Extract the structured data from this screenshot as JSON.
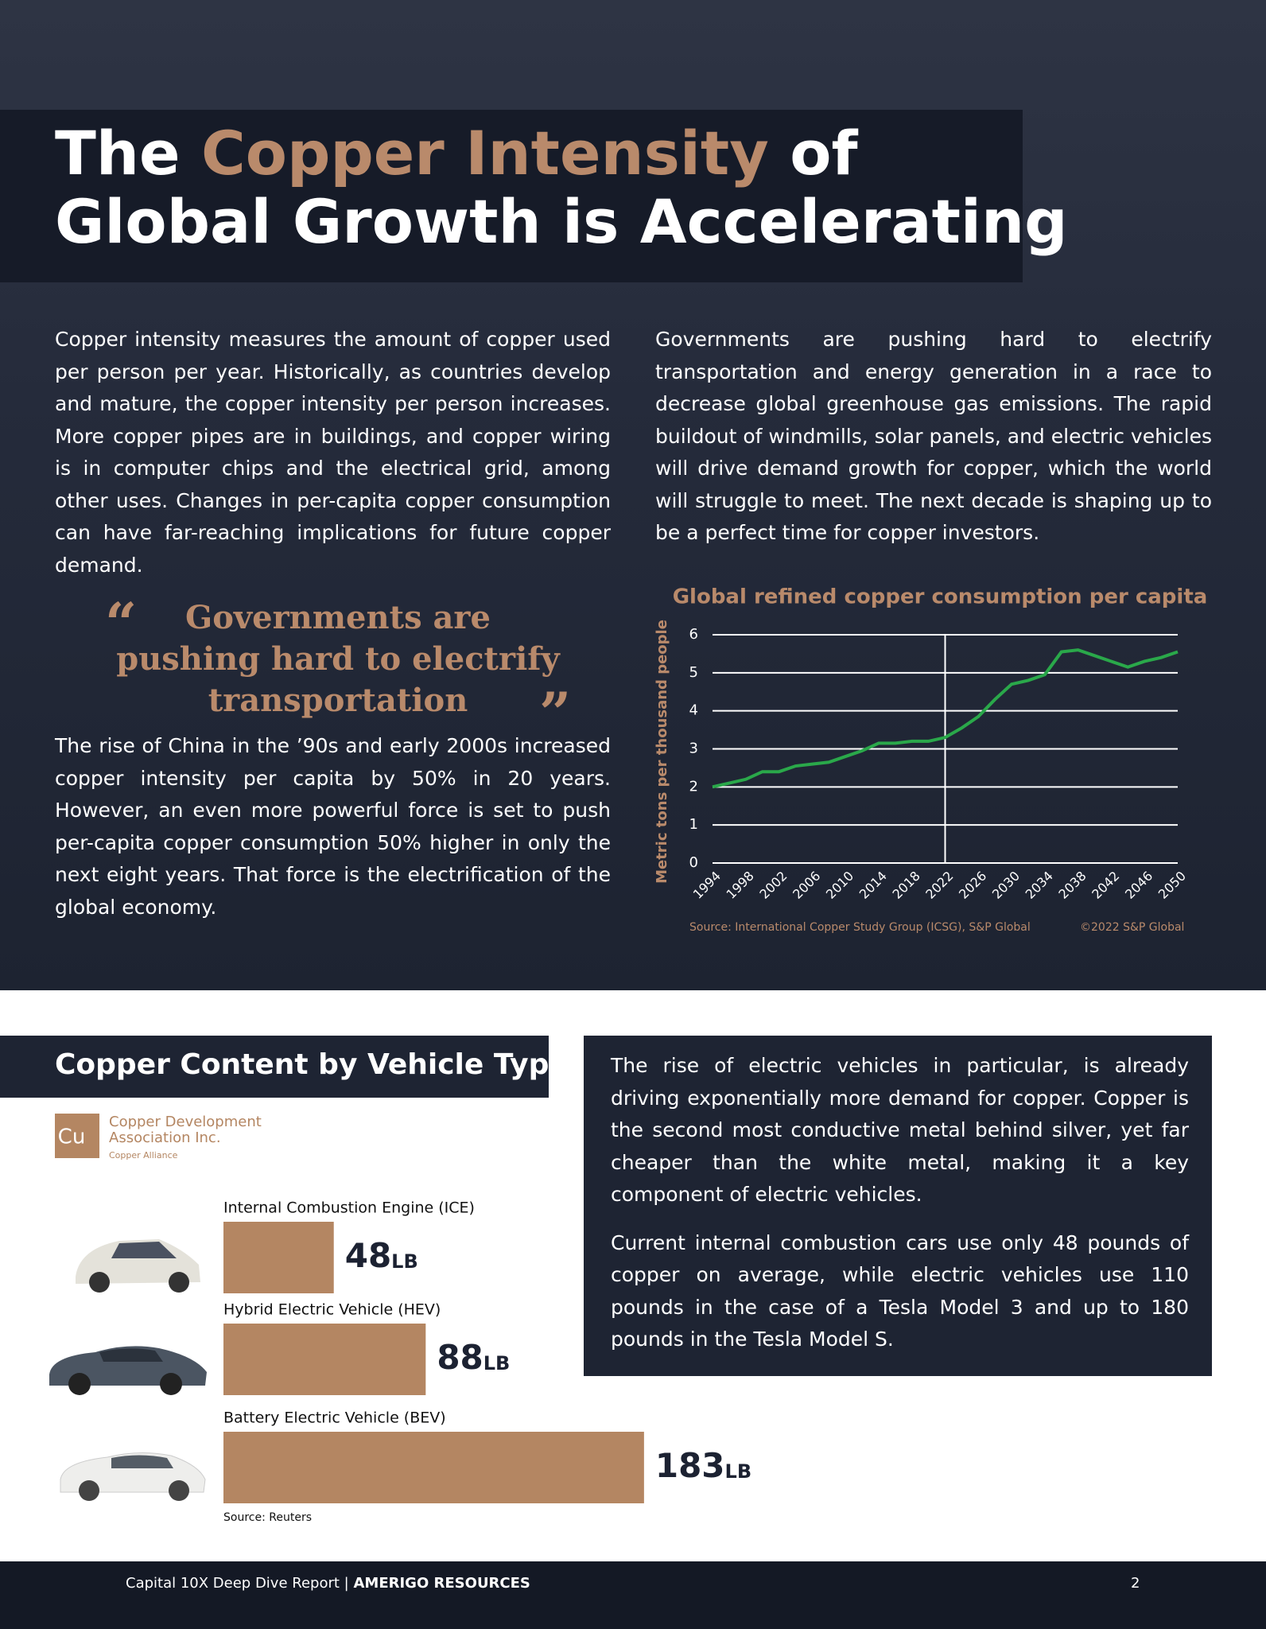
{
  "header": {
    "title_parts": [
      "The",
      "Copper Intensity",
      "of",
      "Global Growth is Accelerating"
    ]
  },
  "intro": {
    "left": "Copper intensity measures the amount of copper used per person per year. Historically, as countries develop and mature, the copper intensity per person increases. More copper pipes are in buildings, and copper wiring is in computer chips and the electrical grid, among other uses. Changes in per-capita copper consumption can have far-reaching implications for future copper demand.",
    "right": "Governments are pushing hard to electrify transportation and energy generation in a race to decrease global greenhouse gas emissions. The rapid buildout of windmills, solar panels, and electric vehicles will drive demand growth for copper, which the world will struggle to meet. The next decade is shaping up to be a perfect time for copper investors.",
    "china": "The rise of China in the ’90s and early 2000s increased copper intensity per capita by 50% in 20 years. However, an even more powerful force is set to push per-capita copper consumption 50% higher in only the next eight years. That force is the electrification of the global economy."
  },
  "quote": {
    "open": "“",
    "lines": [
      "Governments are",
      "pushing hard to electrify",
      "transportation"
    ],
    "close": "”"
  },
  "chart_data": [
    {
      "type": "line",
      "title": "Global refined copper consumption per capita",
      "y_label": "Metric tons per thousand people",
      "x": [
        1994,
        1996,
        1998,
        2000,
        2002,
        2004,
        2006,
        2008,
        2010,
        2012,
        2014,
        2016,
        2018,
        2020,
        2022,
        2024,
        2026,
        2028,
        2030,
        2032,
        2034,
        2036,
        2038,
        2040,
        2042,
        2044,
        2046,
        2048,
        2050
      ],
      "series": [
        {
          "name": "Consumption per capita",
          "color": "#2aa84a",
          "values": [
            2.0,
            2.1,
            2.2,
            2.4,
            2.4,
            2.55,
            2.6,
            2.65,
            2.8,
            2.95,
            3.15,
            3.15,
            3.2,
            3.2,
            3.3,
            3.55,
            3.85,
            4.3,
            4.7,
            4.8,
            4.95,
            5.55,
            5.6,
            5.45,
            5.3,
            5.15,
            5.3,
            5.4,
            5.55
          ]
        }
      ],
      "xlim": [
        1994,
        2050
      ],
      "xticks": [
        1994,
        1998,
        2002,
        2006,
        2010,
        2014,
        2018,
        2022,
        2026,
        2030,
        2034,
        2038,
        2042,
        2046,
        2050
      ],
      "ylim": [
        0,
        6
      ],
      "yticks": [
        0,
        1,
        2,
        3,
        4,
        5,
        6
      ],
      "grid": true,
      "vline": 2022,
      "source": "Source: International Copper Study Group (ICSG), S&P Global",
      "copyright": "©2022 S&P Global"
    },
    {
      "type": "hbar",
      "title": "Copper Content by Vehicle Type",
      "categories": [
        "Internal Combustion Engine (ICE)",
        "Hybrid Electric Vehicle (HEV)",
        "Battery Electric Vehicle (BEV)"
      ],
      "values": [
        48,
        88,
        183
      ],
      "unit": "LB",
      "color": "#b48662",
      "source": "Source: Reuters"
    }
  ],
  "logo": {
    "symbol": "Cu",
    "name_lines": [
      "Copper Development",
      "Association Inc."
    ],
    "tagline": "Copper Alliance"
  },
  "ev_box": {
    "paragraphs": [
      "The rise of electric vehicles in particular, is already driving exponentially more demand for copper. Copper is the second most conductive metal behind silver, yet far cheaper than the white metal, making it a key component of electric vehicles.",
      "Current internal combustion cars use only 48 pounds of copper on average, while electric vehicles use 110 pounds in the case of a Tesla Model 3 and up to 180 pounds in the Tesla Model S."
    ]
  },
  "footer": {
    "report": "Capital 10X Deep Dive Report",
    "separator": "|",
    "company": "AMERIGO RESOURCES",
    "page": "2"
  }
}
